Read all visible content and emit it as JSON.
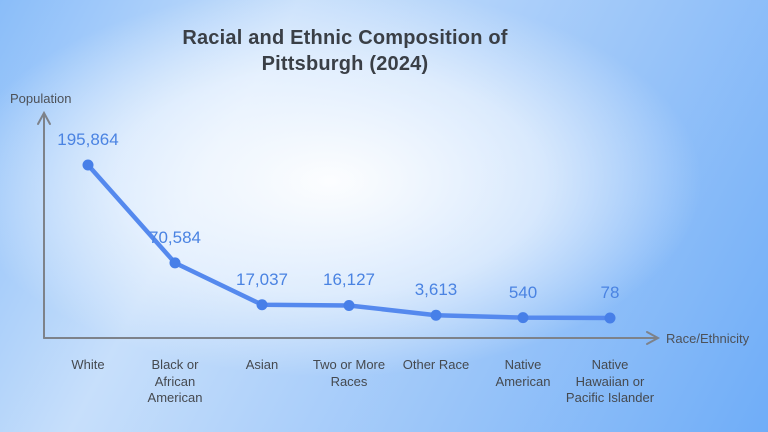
{
  "title_display": "Racial and Ethnic Composition of\nPittsburgh (2024)",
  "axes": {
    "y_label": "Population",
    "x_label": "Race/Ethnicity"
  },
  "chart_data": {
    "type": "line",
    "title": "Racial and Ethnic Composition of Pittsburgh (2024)",
    "xlabel": "Race/Ethnicity",
    "ylabel": "Population",
    "categories": [
      "White",
      "Black or African American",
      "Asian",
      "Two or More Races",
      "Other Race",
      "Native American",
      "Native Hawaiian or Pacific Islander"
    ],
    "tick_labels": [
      "White",
      "Black or\nAfrican\nAmerican",
      "Asian",
      "Two or More\nRaces",
      "Other Race",
      "Native\nAmerican",
      "Native\nHawaiian or\nPacific Islander"
    ],
    "values": [
      195864,
      70584,
      17037,
      16127,
      3613,
      540,
      78
    ],
    "value_labels": [
      "195,864",
      "70,584",
      "17,037",
      "16,127",
      "3,613",
      "540",
      "78"
    ],
    "legend": false,
    "grid": false,
    "ylim": [
      0,
      195864
    ],
    "colors": {
      "line": "#5589ee",
      "point": "#477fe8",
      "value_label": "#4a83e2",
      "axis": "#7d828a",
      "category_text": "#45494f",
      "title": "#3a3f46"
    }
  }
}
